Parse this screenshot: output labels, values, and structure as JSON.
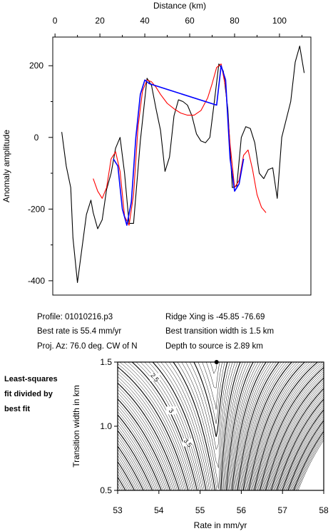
{
  "chart_data": [
    {
      "type": "line",
      "title": "",
      "xlabel": "Distance (km)",
      "ylabel": "Anomaly amplitude",
      "xlim": [
        -1,
        114
      ],
      "ylim": [
        -440,
        280
      ],
      "x_ticks": [
        "0",
        "20",
        "40",
        "60",
        "80",
        "100"
      ],
      "x_tick_values": [
        0,
        20,
        40,
        60,
        80,
        100
      ],
      "y_ticks": [
        "200",
        "0",
        "-200",
        "-400"
      ],
      "y_tick_values": [
        200,
        0,
        -200,
        -400
      ],
      "grid": false,
      "series": [
        {
          "color": "#000000",
          "x": [
            3,
            5,
            7,
            8,
            10,
            12,
            14,
            16,
            17,
            19,
            21,
            23,
            25,
            27,
            29,
            31,
            33,
            35,
            38,
            41,
            43,
            45,
            47,
            49,
            51,
            53,
            55,
            57,
            59,
            61,
            63,
            65,
            67,
            69,
            71,
            73,
            75,
            77,
            79,
            81,
            83,
            85,
            87,
            89,
            91,
            93,
            95,
            97,
            99,
            101,
            103,
            105,
            107,
            109,
            111
          ],
          "y": [
            15,
            -80,
            -140,
            -280,
            -405,
            -310,
            -215,
            -175,
            -210,
            -255,
            -230,
            -145,
            -100,
            -30,
            0,
            -100,
            -240,
            -240,
            -10,
            165,
            145,
            80,
            20,
            -95,
            -55,
            60,
            105,
            100,
            90,
            60,
            10,
            -10,
            -15,
            0,
            100,
            205,
            185,
            80,
            -140,
            -135,
            0,
            30,
            25,
            -15,
            -100,
            -115,
            -90,
            -85,
            -170,
            0,
            50,
            100,
            210,
            255,
            180
          ]
        },
        {
          "color": "#ff0000",
          "x": [
            17,
            19,
            21,
            23,
            25,
            27,
            29,
            31,
            33,
            35,
            37,
            39,
            41,
            43,
            45,
            47,
            50,
            53,
            56,
            59,
            62,
            65,
            68,
            70,
            72,
            74,
            76,
            78,
            80,
            82,
            84,
            86,
            88,
            90,
            92,
            94
          ],
          "y": [
            -115,
            -150,
            -170,
            -140,
            -60,
            -40,
            -95,
            -220,
            -245,
            -160,
            30,
            130,
            160,
            155,
            140,
            120,
            95,
            80,
            68,
            62,
            62,
            75,
            110,
            150,
            195,
            205,
            140,
            -20,
            -140,
            -120,
            -50,
            -35,
            -90,
            -160,
            -195,
            -210
          ]
        },
        {
          "color": "#0000ff",
          "x": [
            26,
            28,
            30,
            32,
            34,
            36,
            38,
            40,
            42,
            72,
            74,
            76,
            78,
            80,
            82,
            84
          ],
          "y": [
            -60,
            -80,
            -200,
            -245,
            -180,
            0,
            120,
            160,
            150,
            90,
            200,
            160,
            -60,
            -150,
            -130,
            -60
          ]
        }
      ]
    },
    {
      "type": "heatmap",
      "xlabel": "Rate in mm/yr",
      "ylabel": "Transition width in km",
      "xlim": [
        53,
        58
      ],
      "ylim": [
        0.5,
        1.5
      ],
      "x_ticks": [
        "53",
        "54",
        "55",
        "56",
        "57",
        "58"
      ],
      "x_tick_values": [
        53,
        54,
        55,
        56,
        57,
        58
      ],
      "y_ticks": [
        "1.5",
        "1.0",
        "0.5"
      ],
      "y_tick_values": [
        1.5,
        1.0,
        0.5
      ],
      "contour_labels": [
        {
          "text": "2.5",
          "x": 53.9,
          "y": 1.38
        },
        {
          "text": "3",
          "x": 54.3,
          "y": 1.12
        },
        {
          "text": "3.5",
          "x": 54.7,
          "y": 0.87
        }
      ],
      "best_fit_marker": {
        "x": 55.4,
        "y": 1.5
      }
    }
  ],
  "info": {
    "profile": "Profile: 01010216.p3",
    "best_rate": "Best rate is 55.4 mm/yr",
    "proj_az": "Proj. Az: 76.0 deg. CW of N",
    "ridge_xing": "Ridge Xing is -45.85 -76.69",
    "transition_width": "Best transition width is 1.5 km",
    "depth": "Depth to source is   2.89 km"
  },
  "side_label": [
    "Least-squares",
    "fit divided by",
    "best fit"
  ]
}
